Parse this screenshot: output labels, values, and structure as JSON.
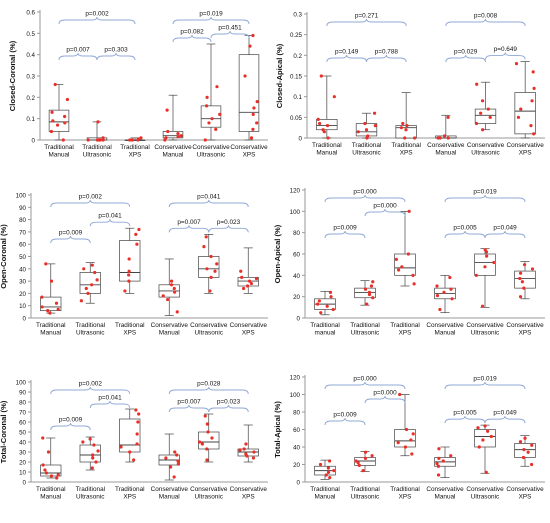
{
  "chart_data": [
    {
      "type": "box",
      "ylabel": "Closed-Coronal (%)",
      "ylim": [
        0,
        0.6
      ],
      "yticks": [
        0,
        0.1,
        0.2,
        0.3,
        0.4,
        0.5,
        0.6
      ],
      "categories": [
        "Traditional Manual",
        "Traditional Ultrasonic",
        "Traditional XPS",
        "Conservative Manual",
        "Conservative Ultrasonic",
        "Conservative XPS"
      ],
      "boxes": [
        {
          "min": 0.0,
          "q1": 0.04,
          "median": 0.085,
          "q3": 0.14,
          "max": 0.26,
          "points": [
            0.0,
            0.04,
            0.07,
            0.08,
            0.09,
            0.11,
            0.13,
            0.19,
            0.26
          ]
        },
        {
          "min": 0.0,
          "q1": 0.0,
          "median": 0.0,
          "q3": 0.01,
          "max": 0.085,
          "points": [
            0.0,
            0.0,
            0.0,
            0.0,
            0.0,
            0.0,
            0.01,
            0.085
          ]
        },
        {
          "min": 0.0,
          "q1": 0.0,
          "median": 0.0,
          "q3": 0.0,
          "max": 0.01,
          "points": [
            0.0,
            0.0,
            0.0,
            0.0,
            0.005,
            0.01
          ]
        },
        {
          "min": 0.0,
          "q1": 0.01,
          "median": 0.02,
          "q3": 0.04,
          "max": 0.21,
          "points": [
            0.0,
            0.01,
            0.015,
            0.02,
            0.03,
            0.04,
            0.14
          ]
        },
        {
          "min": 0.0,
          "q1": 0.06,
          "median": 0.1,
          "q3": 0.16,
          "max": 0.45,
          "points": [
            0.0,
            0.05,
            0.08,
            0.1,
            0.12,
            0.16,
            0.2,
            0.25
          ]
        },
        {
          "min": 0.0,
          "q1": 0.04,
          "median": 0.13,
          "q3": 0.4,
          "max": 0.49,
          "points": [
            0.01,
            0.05,
            0.08,
            0.12,
            0.15,
            0.18,
            0.3,
            0.44,
            0.49
          ]
        }
      ],
      "comparisons": [
        {
          "label": "p=0.002",
          "from": 0,
          "to": 2
        },
        {
          "label": "p=0.007",
          "from": 0,
          "to": 1
        },
        {
          "label": "p=0.303",
          "from": 1,
          "to": 2
        },
        {
          "label": "p=0.019",
          "from": 3,
          "to": 5
        },
        {
          "label": "p=0.082",
          "from": 3,
          "to": 4
        },
        {
          "label": "p=0.451",
          "from": 4,
          "to": 5
        }
      ]
    },
    {
      "type": "box",
      "ylabel": "Closed-Apical (%)",
      "ylim": [
        0,
        0.3
      ],
      "yticks": [
        0,
        0.05,
        0.1,
        0.15,
        0.2,
        0.25,
        0.3
      ],
      "categories": [
        "Traditional Manual",
        "Traditional Ultrasonic",
        "Traditional XPS",
        "Conservative Manual",
        "Conservative Ultrasonic",
        "Conservative XPS"
      ],
      "boxes": [
        {
          "min": 0.0,
          "q1": 0.02,
          "median": 0.03,
          "q3": 0.045,
          "max": 0.15,
          "points": [
            0.0,
            0.015,
            0.02,
            0.03,
            0.035,
            0.045,
            0.1,
            0.15
          ]
        },
        {
          "min": 0.0,
          "q1": 0.005,
          "median": 0.015,
          "q3": 0.035,
          "max": 0.06,
          "points": [
            0.0,
            0.005,
            0.015,
            0.02,
            0.03,
            0.035,
            0.06
          ]
        },
        {
          "min": 0.0,
          "q1": 0.0,
          "median": 0.025,
          "q3": 0.03,
          "max": 0.11,
          "points": [
            0.0,
            0.0,
            0.02,
            0.025,
            0.03,
            0.035
          ]
        },
        {
          "min": 0.0,
          "q1": 0.0,
          "median": 0.0,
          "q3": 0.005,
          "max": 0.055,
          "points": [
            0.0,
            0.0,
            0.0,
            0.005,
            0.05
          ]
        },
        {
          "min": 0.02,
          "q1": 0.035,
          "median": 0.055,
          "q3": 0.07,
          "max": 0.135,
          "points": [
            0.02,
            0.035,
            0.05,
            0.06,
            0.07,
            0.09,
            0.13
          ]
        },
        {
          "min": 0.0,
          "q1": 0.01,
          "median": 0.065,
          "q3": 0.11,
          "max": 0.185,
          "points": [
            0.01,
            0.03,
            0.05,
            0.07,
            0.09,
            0.12,
            0.16,
            0.18
          ]
        }
      ],
      "comparisons": [
        {
          "label": "p=0.271",
          "from": 0,
          "to": 2
        },
        {
          "label": "p=0.149",
          "from": 0,
          "to": 1
        },
        {
          "label": "p=0.788",
          "from": 1,
          "to": 2
        },
        {
          "label": "p=0.008",
          "from": 3,
          "to": 5
        },
        {
          "label": "p=0.029",
          "from": 3,
          "to": 4
        },
        {
          "label": "p=0.649",
          "from": 4,
          "to": 5
        }
      ]
    },
    {
      "type": "box",
      "ylabel": "Open-Coronal (%)",
      "ylim": [
        0,
        100
      ],
      "yticks": [
        0,
        10,
        20,
        30,
        40,
        50,
        60,
        70,
        80,
        90,
        100
      ],
      "categories": [
        "Traditional Manual",
        "Traditional Ultrasonic",
        "Traditional XPS",
        "Conservative Manual",
        "Conservative Ultrasonic",
        "Conservative XPS"
      ],
      "boxes": [
        {
          "min": 4,
          "q1": 6,
          "median": 9,
          "q3": 17,
          "max": 44,
          "points": [
            4,
            6,
            7,
            9,
            12,
            17,
            30,
            44
          ]
        },
        {
          "min": 12,
          "q1": 20,
          "median": 27,
          "q3": 37,
          "max": 45,
          "points": [
            14,
            20,
            24,
            27,
            31,
            37,
            40,
            43
          ]
        },
        {
          "min": 20,
          "q1": 30,
          "median": 37,
          "q3": 63,
          "max": 73,
          "points": [
            22,
            30,
            35,
            38,
            48,
            60,
            68,
            72
          ]
        },
        {
          "min": 2,
          "q1": 17,
          "median": 22,
          "q3": 27,
          "max": 48,
          "points": [
            5,
            15,
            18,
            21,
            24,
            27,
            30
          ]
        },
        {
          "min": 20,
          "q1": 33,
          "median": 40,
          "q3": 50,
          "max": 68,
          "points": [
            22,
            33,
            38,
            40,
            44,
            50,
            58,
            66
          ]
        },
        {
          "min": 20,
          "q1": 26,
          "median": 30,
          "q3": 33,
          "max": 57,
          "points": [
            24,
            26,
            28,
            30,
            32,
            33,
            38
          ]
        }
      ],
      "comparisons": [
        {
          "label": "p=0.002",
          "from": 0,
          "to": 2
        },
        {
          "label": "p=0.009",
          "from": 0,
          "to": 1
        },
        {
          "label": "p=0.041",
          "from": 1,
          "to": 2
        },
        {
          "label": "p=0.041",
          "from": 3,
          "to": 5
        },
        {
          "label": "p=0.007",
          "from": 3,
          "to": 4
        },
        {
          "label": "p=0.023",
          "from": 4,
          "to": 5
        }
      ]
    },
    {
      "type": "box",
      "ylabel": "Open-Apical (%)",
      "ylim": [
        0,
        120
      ],
      "yticks": [
        0,
        20,
        40,
        60,
        80,
        100,
        120
      ],
      "categories": [
        "Traditional manual",
        "Traditional Ultrasonic",
        "Traditional XPS",
        "Conservative Manual",
        "Conservative Ultrasonic",
        "Conservative XPS"
      ],
      "boxes": [
        {
          "min": 3,
          "q1": 8,
          "median": 13,
          "q3": 18,
          "max": 25,
          "points": [
            5,
            8,
            11,
            13,
            16,
            20,
            24
          ]
        },
        {
          "min": 12,
          "q1": 19,
          "median": 24,
          "q3": 28,
          "max": 35,
          "points": [
            13,
            19,
            22,
            24,
            27,
            30,
            34
          ]
        },
        {
          "min": 30,
          "q1": 40,
          "median": 47,
          "q3": 60,
          "max": 100,
          "points": [
            32,
            40,
            45,
            48,
            55,
            60,
            100
          ]
        },
        {
          "min": 5,
          "q1": 18,
          "median": 23,
          "q3": 28,
          "max": 40,
          "points": [
            8,
            18,
            21,
            24,
            27,
            30,
            38
          ]
        },
        {
          "min": 10,
          "q1": 40,
          "median": 52,
          "q3": 60,
          "max": 65,
          "points": [
            11,
            40,
            48,
            52,
            58,
            62,
            64
          ]
        },
        {
          "min": 18,
          "q1": 28,
          "median": 37,
          "q3": 44,
          "max": 53,
          "points": [
            20,
            28,
            34,
            37,
            42,
            46,
            50
          ]
        }
      ],
      "comparisons": [
        {
          "label": "p=0.000",
          "from": 0,
          "to": 2
        },
        {
          "label": "p=0.009",
          "from": 0,
          "to": 1
        },
        {
          "label": "p=0.000",
          "from": 1,
          "to": 2
        },
        {
          "label": "p=0.019",
          "from": 3,
          "to": 5
        },
        {
          "label": "p=0.005",
          "from": 3,
          "to": 4
        },
        {
          "label": "p=0.049",
          "from": 4,
          "to": 5
        }
      ]
    },
    {
      "type": "box",
      "ylabel": "Total-Coronal (%)",
      "ylim": [
        0,
        100
      ],
      "yticks": [
        0,
        10,
        20,
        30,
        40,
        50,
        60,
        70,
        80,
        90,
        100
      ],
      "categories": [
        "Traditional Manual",
        "Traditional Ultrasonic",
        "Traditional XPS",
        "Conservative Manual",
        "Conservative Ultrasonic",
        "Conservative XPS"
      ],
      "boxes": [
        {
          "min": 4,
          "q1": 6,
          "median": 9,
          "q3": 17,
          "max": 44,
          "points": [
            4,
            6,
            7,
            9,
            12,
            17,
            30,
            44
          ]
        },
        {
          "min": 12,
          "q1": 20,
          "median": 27,
          "q3": 37,
          "max": 45,
          "points": [
            14,
            20,
            24,
            27,
            31,
            37,
            40,
            43
          ]
        },
        {
          "min": 20,
          "q1": 30,
          "median": 37,
          "q3": 63,
          "max": 73,
          "points": [
            22,
            30,
            35,
            38,
            48,
            60,
            68,
            72
          ]
        },
        {
          "min": 2,
          "q1": 17,
          "median": 22,
          "q3": 27,
          "max": 48,
          "points": [
            5,
            15,
            18,
            21,
            24,
            27,
            30
          ]
        },
        {
          "min": 20,
          "q1": 33,
          "median": 40,
          "q3": 50,
          "max": 68,
          "points": [
            22,
            33,
            38,
            40,
            44,
            50,
            58,
            66
          ]
        },
        {
          "min": 20,
          "q1": 26,
          "median": 30,
          "q3": 33,
          "max": 57,
          "points": [
            24,
            26,
            28,
            30,
            32,
            33,
            38
          ]
        }
      ],
      "comparisons": [
        {
          "label": "p=0.002",
          "from": 0,
          "to": 2
        },
        {
          "label": "p=0.009",
          "from": 0,
          "to": 1
        },
        {
          "label": "p=0.041",
          "from": 1,
          "to": 2
        },
        {
          "label": "p=0.028",
          "from": 3,
          "to": 5
        },
        {
          "label": "p=0.007",
          "from": 3,
          "to": 4
        },
        {
          "label": "p=0.023",
          "from": 4,
          "to": 5
        }
      ]
    },
    {
      "type": "box",
      "ylabel": "Total-Apical (%)",
      "ylim": [
        0,
        120
      ],
      "yticks": [
        0,
        20,
        40,
        60,
        80,
        100,
        120
      ],
      "categories": [
        "Traditional Manual",
        "Traditional Ultrasonic",
        "Traditional XPS",
        "Conservative Manual",
        "Conservative Ultrasonic",
        "Conservative XPS"
      ],
      "boxes": [
        {
          "min": 3,
          "q1": 8,
          "median": 13,
          "q3": 18,
          "max": 25,
          "points": [
            5,
            8,
            11,
            13,
            16,
            20,
            24
          ]
        },
        {
          "min": 12,
          "q1": 19,
          "median": 24,
          "q3": 28,
          "max": 35,
          "points": [
            13,
            19,
            22,
            24,
            27,
            30,
            34
          ]
        },
        {
          "min": 30,
          "q1": 40,
          "median": 47,
          "q3": 60,
          "max": 100,
          "points": [
            32,
            40,
            45,
            48,
            55,
            60,
            100
          ]
        },
        {
          "min": 5,
          "q1": 18,
          "median": 23,
          "q3": 28,
          "max": 40,
          "points": [
            8,
            18,
            21,
            24,
            27,
            30,
            38
          ]
        },
        {
          "min": 10,
          "q1": 40,
          "median": 52,
          "q3": 60,
          "max": 65,
          "points": [
            11,
            40,
            48,
            52,
            58,
            62,
            64
          ]
        },
        {
          "min": 18,
          "q1": 28,
          "median": 37,
          "q3": 44,
          "max": 53,
          "points": [
            20,
            28,
            34,
            37,
            42,
            46,
            50
          ]
        }
      ],
      "comparisons": [
        {
          "label": "p=0.000",
          "from": 0,
          "to": 2
        },
        {
          "label": "p=0.009",
          "from": 0,
          "to": 1
        },
        {
          "label": "p=0.000",
          "from": 1,
          "to": 2
        },
        {
          "label": "p=0.019",
          "from": 3,
          "to": 5
        },
        {
          "label": "p=0.005",
          "from": 3,
          "to": 4
        },
        {
          "label": "p=0.049",
          "from": 4,
          "to": 5
        }
      ]
    }
  ],
  "colors": {
    "point": "#e8302a",
    "box_stroke": "#444444",
    "bracket": "#8fa8d6",
    "axis": "#9a9a9a",
    "text": "#111111"
  }
}
